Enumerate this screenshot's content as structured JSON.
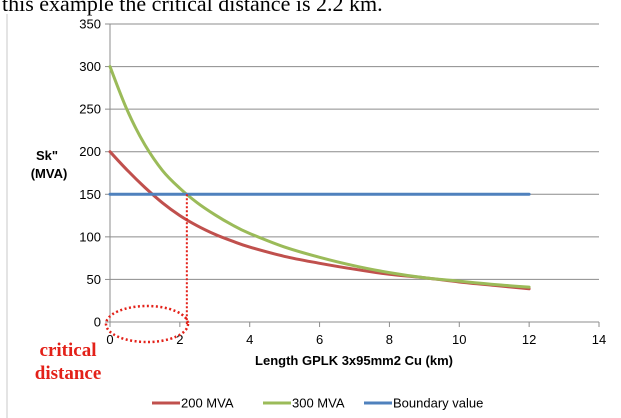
{
  "page": {
    "top_text": "this example the critical distance is 2.2 km."
  },
  "chart_data": {
    "type": "line",
    "ylabel_lines": [
      "Sk\"",
      "(MVA)"
    ],
    "xlabel": "Length GPLK 3x95mm2 Cu (km)",
    "xlim": [
      0,
      14
    ],
    "ylim": [
      0,
      350
    ],
    "x_ticks": [
      0,
      2,
      4,
      6,
      8,
      10,
      12,
      14
    ],
    "y_ticks": [
      0,
      50,
      100,
      150,
      200,
      250,
      300,
      350
    ],
    "grid": "horizontal",
    "legend_position": "bottom",
    "series": [
      {
        "name": "200 MVA",
        "color": "#c0504d",
        "x": [
          0,
          0.5,
          1,
          1.5,
          2,
          2.5,
          3,
          3.5,
          4,
          5,
          6,
          7,
          8,
          9,
          10,
          11,
          12
        ],
        "y": [
          200,
          178,
          158,
          140,
          125,
          113,
          103,
          95,
          88,
          77,
          69,
          62,
          56,
          52,
          47,
          43,
          39
        ]
      },
      {
        "name": "300 MVA",
        "color": "#9bbb59",
        "x": [
          0,
          0.5,
          1,
          1.5,
          2,
          2.5,
          3,
          3.5,
          4,
          5,
          6,
          7,
          8,
          9,
          10,
          11,
          12
        ],
        "y": [
          300,
          248,
          208,
          178,
          157,
          140,
          126,
          114,
          104,
          88,
          76,
          66,
          58,
          52,
          48,
          44,
          41
        ]
      },
      {
        "name": "Boundary value",
        "color": "#4f81bd",
        "x": [
          0,
          12
        ],
        "y": [
          150,
          150
        ]
      }
    ],
    "critical": {
      "label_line1": "critical",
      "label_line2": "distance",
      "x": 2.2,
      "y": 150,
      "color": "#e32119"
    }
  }
}
